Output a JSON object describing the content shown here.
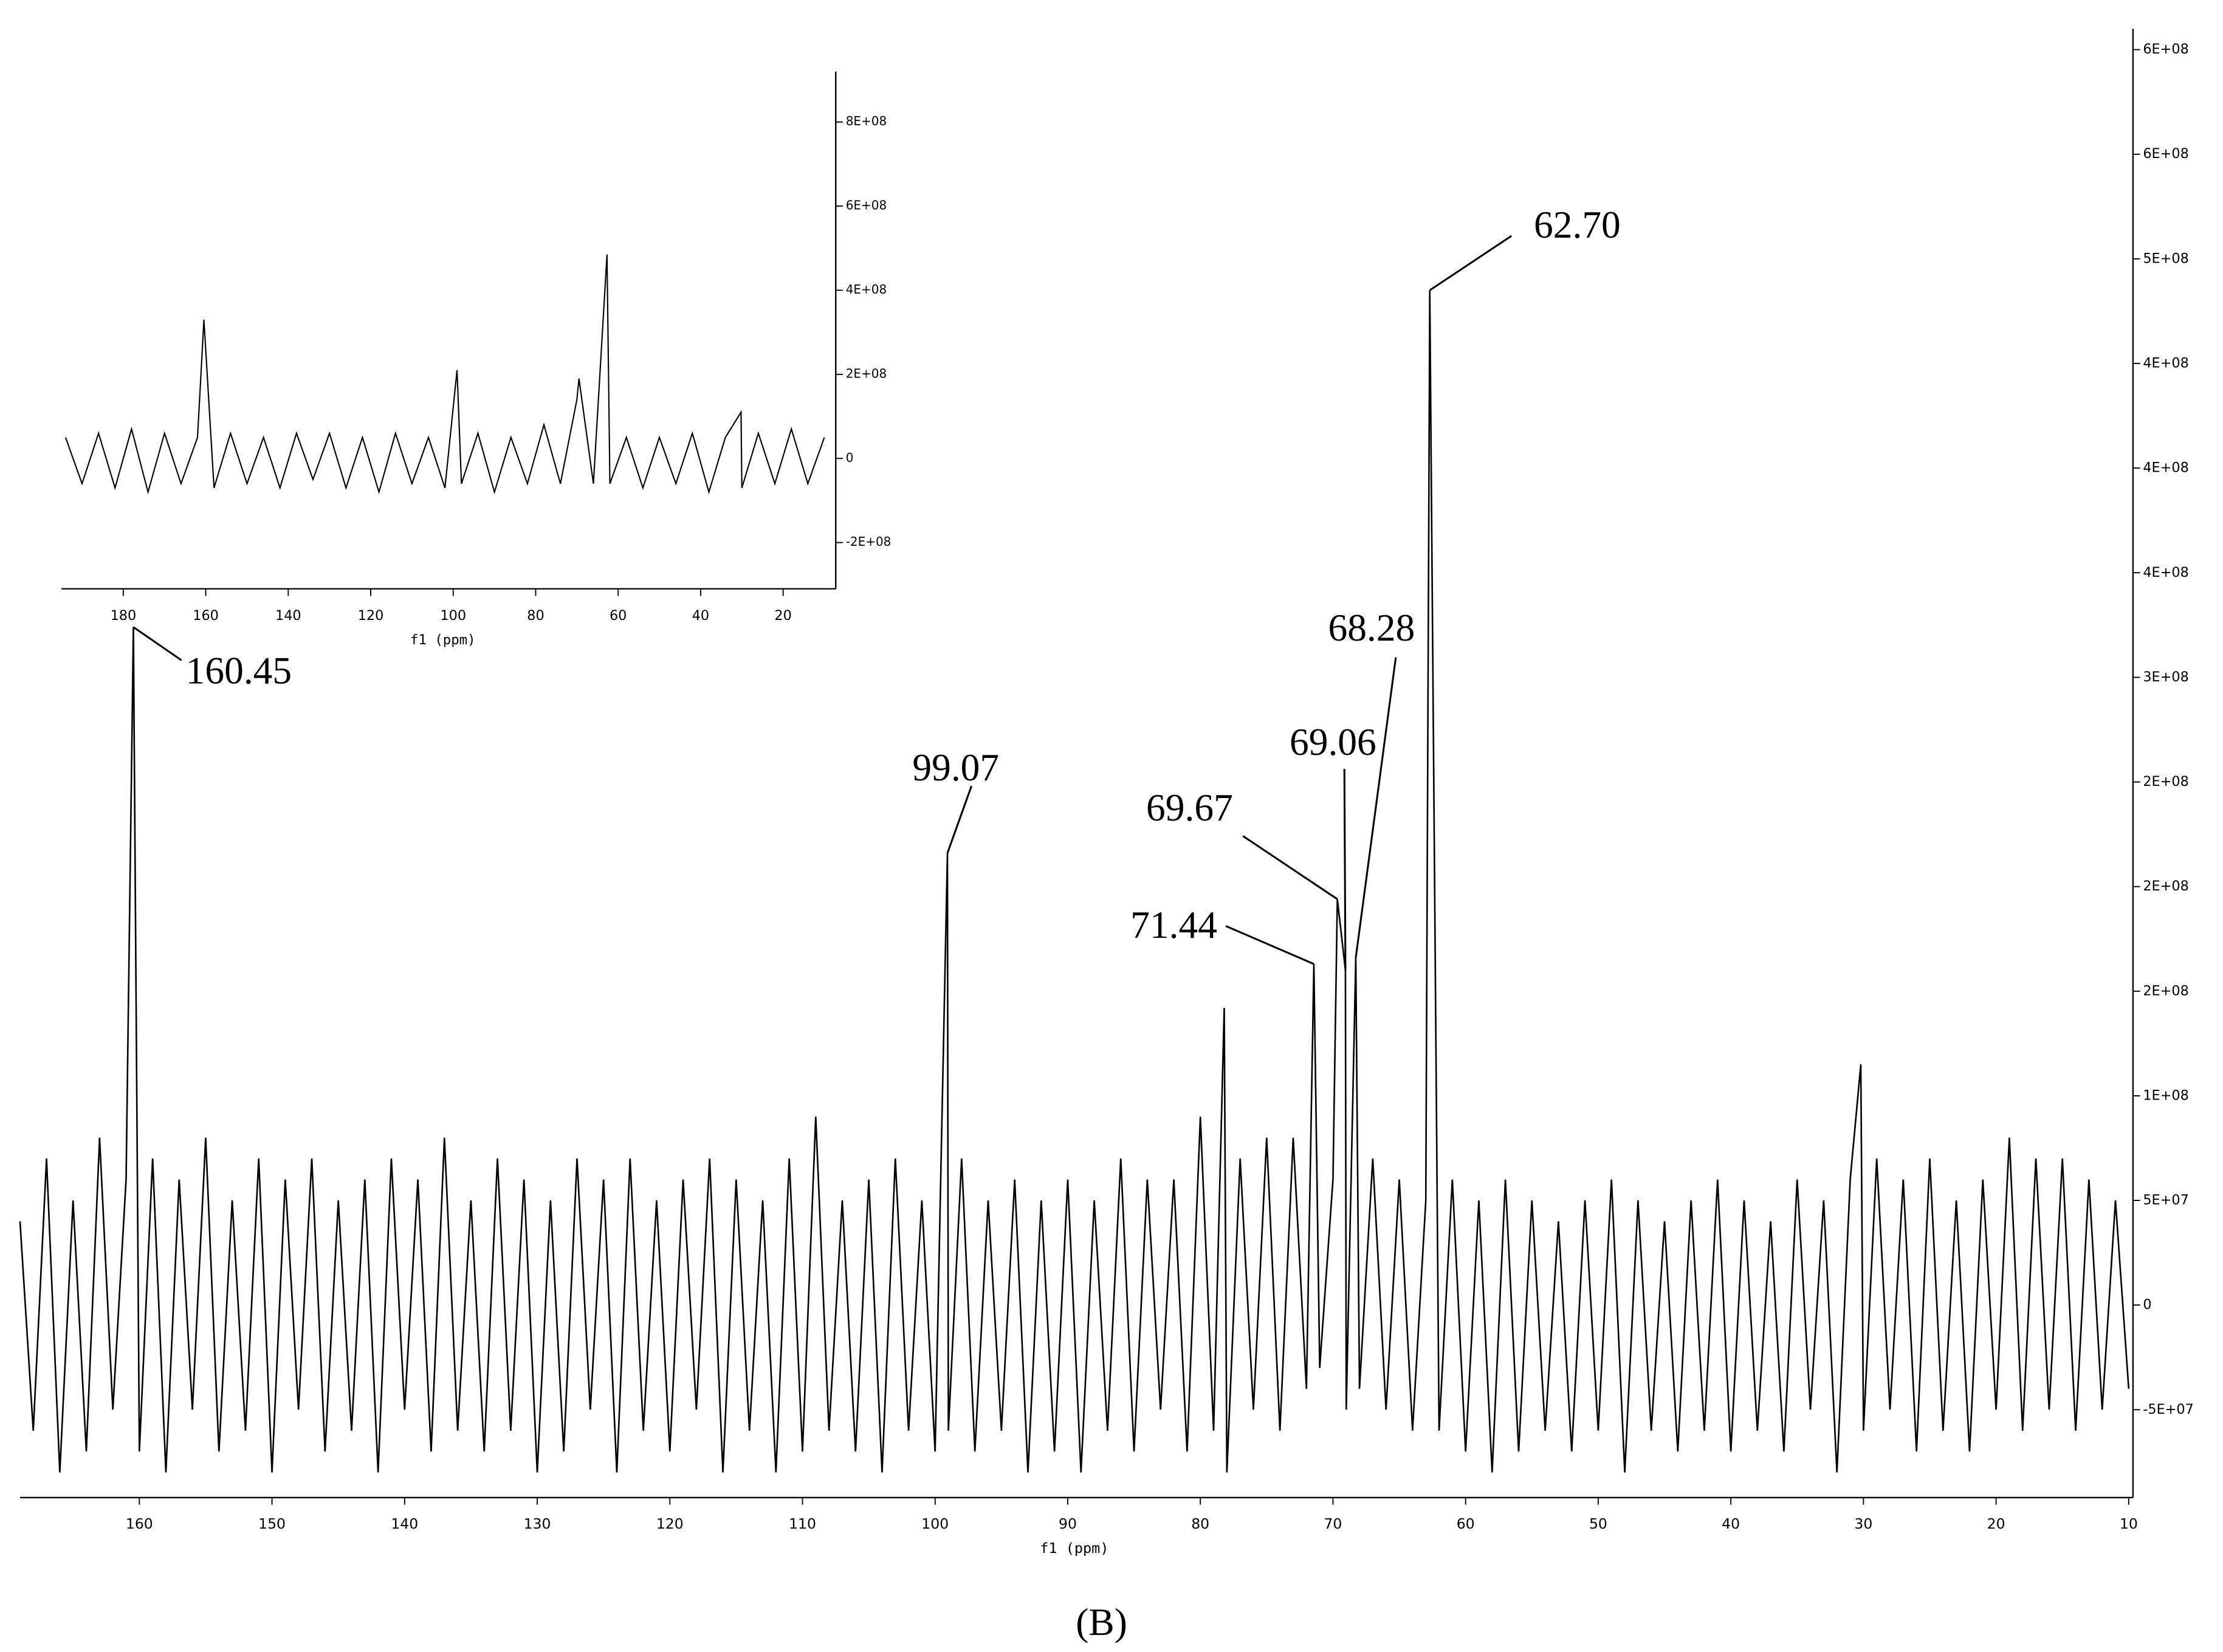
{
  "chart_data": [
    {
      "type": "line",
      "xlabel": "f1 (ppm)",
      "color": "#000000",
      "xlim": [
        169,
        10
      ],
      "ylim": [
        -92000000.0,
        610000000.0
      ],
      "xticks": [
        160,
        150,
        140,
        130,
        120,
        110,
        100,
        90,
        80,
        70,
        60,
        50,
        40,
        30,
        20,
        10
      ],
      "yticks": [
        {
          "value": -50000000.0,
          "label": "-5E+07"
        },
        0,
        {
          "value": 50000000.0,
          "label": "5E+07"
        },
        {
          "value": 100000000.0,
          "label": "1E+08"
        },
        {
          "value": 150000000.0,
          "label": "2E+08"
        },
        {
          "value": 200000000.0,
          "label": "2E+08"
        },
        {
          "value": 250000000.0,
          "label": "2E+08"
        },
        {
          "value": 300000000.0,
          "label": "3E+08"
        },
        {
          "value": 350000000.0,
          "label": "4E+08"
        },
        {
          "value": 400000000.0,
          "label": "4E+08"
        },
        {
          "value": 450000000.0,
          "label": "4E+08"
        },
        {
          "value": 500000000.0,
          "label": "5E+08"
        },
        {
          "value": 550000000.0,
          "label": "6E+08"
        },
        {
          "value": 600000000.0,
          "label": "6E+08"
        }
      ],
      "x": [
        169,
        168,
        167,
        166,
        165,
        164,
        163,
        162,
        161,
        160.45,
        160,
        159,
        158,
        157,
        156,
        155,
        154,
        153,
        152,
        151,
        150,
        149,
        148,
        147,
        146,
        145,
        144,
        143,
        142,
        141,
        140,
        139,
        138,
        137,
        136,
        135,
        134,
        133,
        132,
        131,
        130,
        129,
        128,
        127,
        126,
        125,
        124,
        123,
        122,
        121,
        120,
        119,
        118,
        117,
        116,
        115,
        114,
        113,
        112,
        111,
        110,
        109,
        108,
        107,
        106,
        105,
        104,
        103,
        102,
        101,
        100,
        99.07,
        99,
        98,
        97,
        96,
        95,
        94,
        93,
        92,
        91,
        90,
        89,
        88,
        87,
        86,
        85,
        84,
        83,
        82,
        81,
        80,
        79,
        78.2,
        78,
        77,
        76,
        75,
        74,
        73,
        72,
        71.44,
        71,
        70,
        69.67,
        69.06,
        69,
        68.28,
        68,
        67,
        66,
        65,
        64,
        63,
        62.7,
        62,
        61,
        60,
        59,
        58,
        57,
        56,
        55,
        54,
        53,
        52,
        51,
        50,
        49,
        48,
        47,
        46,
        45,
        44,
        43,
        42,
        41,
        40,
        39,
        38,
        37,
        36,
        35,
        34,
        33,
        32,
        31,
        30.2,
        30,
        29,
        28,
        27,
        26,
        25,
        24,
        23,
        22,
        21,
        20,
        19,
        18,
        17,
        16,
        15,
        14,
        13,
        12,
        11,
        10
      ],
      "values": [
        40000000.0,
        -60000000.0,
        70000000.0,
        -80000000.0,
        50000000.0,
        -70000000.0,
        80000000.0,
        -50000000.0,
        60000000.0,
        324000000.0,
        -70000000.0,
        70000000.0,
        -80000000.0,
        60000000.0,
        -50000000.0,
        80000000.0,
        -70000000.0,
        50000000.0,
        -60000000.0,
        70000000.0,
        -80000000.0,
        60000000.0,
        -50000000.0,
        70000000.0,
        -70000000.0,
        50000000.0,
        -60000000.0,
        60000000.0,
        -80000000.0,
        70000000.0,
        -50000000.0,
        60000000.0,
        -70000000.0,
        80000000.0,
        -60000000.0,
        50000000.0,
        -70000000.0,
        70000000.0,
        -60000000.0,
        60000000.0,
        -80000000.0,
        50000000.0,
        -70000000.0,
        70000000.0,
        -50000000.0,
        60000000.0,
        -80000000.0,
        70000000.0,
        -60000000.0,
        50000000.0,
        -70000000.0,
        60000000.0,
        -50000000.0,
        70000000.0,
        -80000000.0,
        60000000.0,
        -60000000.0,
        50000000.0,
        -80000000.0,
        70000000.0,
        -70000000.0,
        90000000.0,
        -60000000.0,
        50000000.0,
        -70000000.0,
        60000000.0,
        -80000000.0,
        70000000.0,
        -60000000.0,
        50000000.0,
        -70000000.0,
        216000000.0,
        -60000000.0,
        70000000.0,
        -70000000.0,
        50000000.0,
        -60000000.0,
        60000000.0,
        -80000000.0,
        50000000.0,
        -70000000.0,
        60000000.0,
        -80000000.0,
        50000000.0,
        -60000000.0,
        70000000.0,
        -70000000.0,
        60000000.0,
        -50000000.0,
        60000000.0,
        -70000000.0,
        90000000.0,
        -60000000.0,
        142000000.0,
        -80000000.0,
        70000000.0,
        -50000000.0,
        80000000.0,
        -60000000.0,
        80000000.0,
        -40000000.0,
        163000000.0,
        -30000000.0,
        60000000.0,
        194000000.0,
        160000000.0,
        -50000000.0,
        166000000.0,
        -40000000.0,
        70000000.0,
        -50000000.0,
        60000000.0,
        -60000000.0,
        50000000.0,
        485000000.0,
        -60000000.0,
        60000000.0,
        -70000000.0,
        50000000.0,
        -80000000.0,
        60000000.0,
        -70000000.0,
        50000000.0,
        -60000000.0,
        40000000.0,
        -70000000.0,
        50000000.0,
        -60000000.0,
        60000000.0,
        -80000000.0,
        50000000.0,
        -60000000.0,
        40000000.0,
        -70000000.0,
        50000000.0,
        -60000000.0,
        60000000.0,
        -70000000.0,
        50000000.0,
        -60000000.0,
        40000000.0,
        -70000000.0,
        60000000.0,
        -50000000.0,
        50000000.0,
        -80000000.0,
        60000000.0,
        115000000.0,
        -60000000.0,
        70000000.0,
        -50000000.0,
        60000000.0,
        -70000000.0,
        70000000.0,
        -60000000.0,
        50000000.0,
        -70000000.0,
        60000000.0,
        -50000000.0,
        80000000.0,
        -60000000.0,
        70000000.0,
        -50000000.0,
        70000000.0,
        -60000000.0,
        60000000.0,
        -50000000.0,
        50000000.0,
        -40000000.0
      ],
      "annotations": [
        {
          "text": "160.45",
          "x": 160.45
        },
        {
          "text": "99.07",
          "x": 99.07
        },
        {
          "text": "71.44",
          "x": 71.44
        },
        {
          "text": "69.67",
          "x": 69.67
        },
        {
          "text": "69.06",
          "x": 69.06
        },
        {
          "text": "68.28",
          "x": 68.28
        },
        {
          "text": "62.70",
          "x": 62.7
        }
      ]
    },
    {
      "type": "line",
      "xlabel": "f1 (ppm)",
      "color": "#000000",
      "xlim": [
        195,
        10
      ],
      "ylim": [
        -310000000.0,
        920000000.0
      ],
      "xticks": [
        180,
        160,
        140,
        120,
        100,
        80,
        60,
        40,
        20
      ],
      "yticks": [
        {
          "value": -200000000.0,
          "label": "-2E+08"
        },
        0,
        {
          "value": 200000000.0,
          "label": "2E+08"
        },
        {
          "value": 400000000.0,
          "label": "4E+08"
        },
        {
          "value": 600000000.0,
          "label": "6E+08"
        },
        {
          "value": 800000000.0,
          "label": "8E+08"
        }
      ],
      "x": [
        194,
        190,
        186,
        182,
        178,
        174,
        170,
        166,
        162,
        160.45,
        158,
        154,
        150,
        146,
        142,
        138,
        134,
        130,
        126,
        122,
        118,
        114,
        110,
        106,
        102,
        99.07,
        98,
        94,
        90,
        86,
        82,
        78,
        74,
        70,
        69.5,
        66,
        62.7,
        62,
        58,
        54,
        50,
        46,
        42,
        38,
        34,
        30.2,
        30,
        26,
        22,
        18,
        14,
        10
      ],
      "values": [
        50000000.0,
        -60000000.0,
        60000000.0,
        -70000000.0,
        70000000.0,
        -80000000.0,
        60000000.0,
        -60000000.0,
        50000000.0,
        330000000.0,
        -70000000.0,
        60000000.0,
        -60000000.0,
        50000000.0,
        -70000000.0,
        60000000.0,
        -50000000.0,
        60000000.0,
        -70000000.0,
        50000000.0,
        -80000000.0,
        60000000.0,
        -60000000.0,
        50000000.0,
        -70000000.0,
        210000000.0,
        -60000000.0,
        60000000.0,
        -80000000.0,
        50000000.0,
        -60000000.0,
        80000000.0,
        -60000000.0,
        140000000.0,
        190000000.0,
        -60000000.0,
        485000000.0,
        -60000000.0,
        50000000.0,
        -70000000.0,
        50000000.0,
        -60000000.0,
        60000000.0,
        -80000000.0,
        50000000.0,
        110000000.0,
        -70000000.0,
        60000000.0,
        -60000000.0,
        70000000.0,
        -60000000.0,
        50000000.0
      ]
    }
  ],
  "caption": "(B)"
}
